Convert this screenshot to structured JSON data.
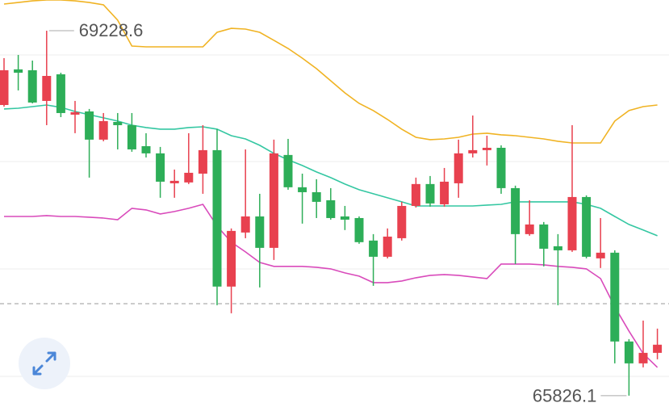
{
  "chart_data": {
    "type": "candlestick",
    "categories": [
      null,
      null,
      null,
      null,
      null,
      null,
      null,
      null,
      null,
      null,
      null,
      null,
      null,
      null,
      null,
      null,
      null,
      null,
      null,
      null,
      null,
      null,
      null,
      null,
      null,
      null,
      null,
      null,
      null,
      null,
      null,
      null,
      null,
      null,
      null,
      null,
      null,
      null,
      null,
      null,
      null,
      null,
      null,
      null,
      null,
      null,
      null
    ],
    "open": [
      68536,
      68868,
      68860,
      68574,
      68822,
      68446,
      68476,
      68213,
      68378,
      68348,
      68152,
      68085,
      67806,
      67814,
      67896,
      68115,
      66843,
      67347,
      67497,
      67204,
      68070,
      67769,
      67723,
      67648,
      67497,
      67482,
      67272,
      67121,
      67294,
      67595,
      67799,
      67610,
      67806,
      68085,
      68115,
      68137,
      67761,
      67332,
      67422,
      67219,
      67181,
      67678,
      67106,
      67159,
      66331,
      66127,
      66225
    ],
    "high": [
      68973,
      69003,
      68950,
      69228.6,
      68837,
      68574,
      68499,
      68461,
      68461,
      68461,
      68273,
      68145,
      67934,
      68273,
      68348,
      68311,
      67385,
      68122,
      67708,
      68213,
      68220,
      67896,
      67844,
      67761,
      67595,
      67497,
      67332,
      67385,
      67633,
      67859,
      67874,
      67949,
      68213,
      68438,
      68250,
      68160,
      67784,
      67648,
      67445,
      67332,
      68348,
      67693,
      67482,
      67181,
      66353,
      66526,
      66451
    ],
    "low": [
      68521,
      68672,
      68551,
      68348,
      68423,
      68273,
      67859,
      68198,
      68122,
      68100,
      68047,
      67671,
      67671,
      67799,
      67708,
      66669,
      66594,
      67294,
      66835,
      67091,
      67746,
      67430,
      67482,
      67467,
      67370,
      67242,
      66850,
      67106,
      67272,
      67580,
      67588,
      67588,
      67671,
      68047,
      67972,
      67708,
      67053,
      67317,
      67031,
      66669,
      67166,
      67106,
      67016,
      66127,
      65826.1,
      66090,
      66165
    ],
    "close": [
      68860,
      68837,
      68559,
      68807,
      68461,
      68469,
      68213,
      68386,
      68348,
      68122,
      68085,
      67821,
      67829,
      67904,
      68115,
      66843,
      67362,
      67497,
      67204,
      68085,
      67769,
      67723,
      67633,
      67482,
      67467,
      67257,
      67121,
      67309,
      67595,
      67799,
      67618,
      67821,
      68085,
      68115,
      68137,
      67761,
      67332,
      67422,
      67196,
      67181,
      67678,
      67121,
      67159,
      66331,
      66127,
      66225,
      66301
    ],
    "up_color": "#e8414f",
    "down_color": "#2dae58",
    "bands": [
      {
        "color": "#f0b323",
        "values": [
          69477,
          69492,
          69507,
          69515,
          69515,
          69507,
          69492,
          69470,
          69327,
          69086,
          69078,
          69078,
          69078,
          69078,
          69078,
          69214,
          69251,
          69244,
          69214,
          69139,
          69063,
          68973,
          68875,
          68762,
          68649,
          68551,
          68484,
          68401,
          68311,
          68235,
          68213,
          68220,
          68235,
          68265,
          68273,
          68258,
          68250,
          68235,
          68220,
          68198,
          68182,
          68182,
          68182,
          68386,
          68484,
          68521,
          68536
        ]
      },
      {
        "color": "#34c7a2",
        "values": [
          68499,
          68506,
          68521,
          68536,
          68514,
          68476,
          68446,
          68416,
          68386,
          68348,
          68326,
          68311,
          68311,
          68326,
          68333,
          68311,
          68250,
          68220,
          68160,
          68085,
          68025,
          67972,
          67912,
          67859,
          67799,
          67746,
          67708,
          67671,
          67633,
          67595,
          67595,
          67595,
          67595,
          67595,
          67603,
          67610,
          67633,
          67633,
          67633,
          67633,
          67633,
          67610,
          67573,
          67497,
          67422,
          67370,
          67317
        ]
      },
      {
        "color": "#d94bbb",
        "values": [
          67497,
          67497,
          67497,
          67505,
          67497,
          67497,
          67490,
          67482,
          67467,
          67573,
          67558,
          67520,
          67543,
          67573,
          67610,
          67407,
          67257,
          67166,
          67068,
          67031,
          67031,
          67031,
          67023,
          67008,
          66970,
          66940,
          66880,
          66880,
          66895,
          66925,
          66948,
          66955,
          66948,
          66933,
          66918,
          67053,
          67053,
          67053,
          67046,
          67031,
          67023,
          67008,
          66918,
          66654,
          66428,
          66218,
          66090
        ]
      }
    ],
    "ylim": [
      65599,
      69515
    ]
  }
}
